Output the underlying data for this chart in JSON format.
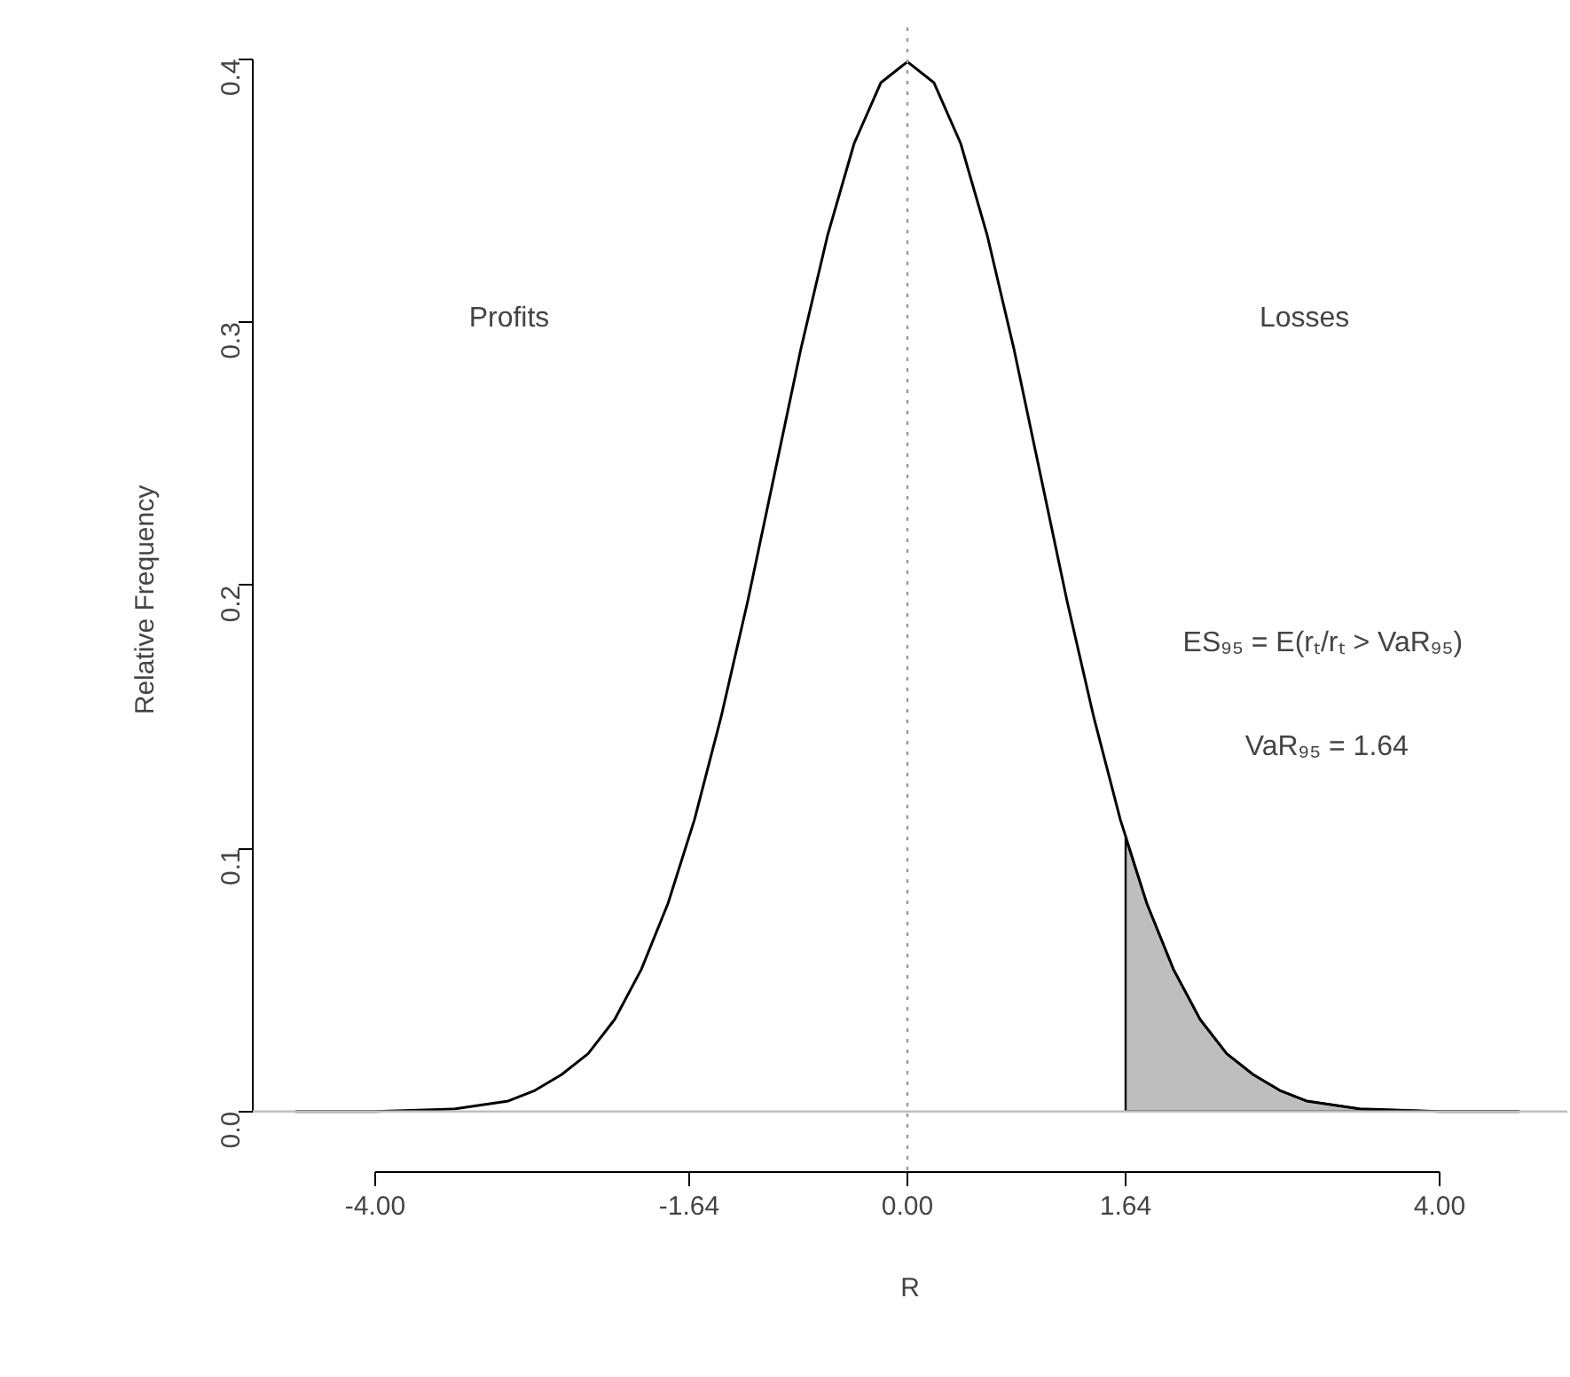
{
  "chart_data": {
    "type": "line",
    "xlabel": "R",
    "ylabel": "Relative Frequency",
    "xlim": [
      -4.92,
      4.96
    ],
    "ylim": [
      -0.023,
      0.412
    ],
    "xticks": [
      {
        "value": -4,
        "label": "-4.00"
      },
      {
        "value": -1.64,
        "label": "-1.64"
      },
      {
        "value": 0,
        "label": "0.00"
      },
      1.64,
      {
        "value": 4,
        "label": "4.00"
      }
    ],
    "yticks": [
      {
        "value": 0,
        "label": "0.0"
      },
      0.1,
      0.2,
      0.3,
      0.4
    ],
    "grid": false,
    "line_style": "solid",
    "marker": "none",
    "series": [
      {
        "color": "#000000",
        "x": [
          -4.6,
          -4.0,
          -3.4,
          -3.0,
          -2.8,
          -2.6,
          -2.4,
          -2.2,
          -2.0,
          -1.8,
          -1.6,
          -1.4,
          -1.2,
          -1.0,
          -0.8,
          -0.6,
          -0.4,
          -0.2,
          0,
          0.2,
          0.4,
          0.6,
          0.8,
          1.0,
          1.2,
          1.4,
          1.6,
          1.8,
          2.0,
          2.2,
          2.4,
          2.6,
          2.8,
          3.0,
          3.4,
          4.0,
          4.6
        ],
        "values": [
          0.0,
          0.0,
          0.001,
          0.004,
          0.008,
          0.014,
          0.022,
          0.035,
          0.054,
          0.079,
          0.111,
          0.15,
          0.194,
          0.242,
          0.29,
          0.333,
          0.368,
          0.391,
          0.399,
          0.391,
          0.368,
          0.333,
          0.29,
          0.242,
          0.194,
          0.15,
          0.111,
          0.079,
          0.054,
          0.035,
          0.022,
          0.014,
          0.008,
          0.004,
          0.001,
          0.0,
          0.0
        ]
      },
      {
        "type": "area",
        "color": "#bebebe",
        "x": [
          1.64,
          1.8,
          2.0,
          2.2,
          2.4,
          2.6,
          2.8,
          3.0,
          3.4,
          4.0,
          4.6
        ],
        "values": [
          0.104,
          0.079,
          0.054,
          0.035,
          0.022,
          0.014,
          0.008,
          0.004,
          0.001,
          0.0,
          0.0
        ]
      }
    ],
    "ref_lines": [
      {
        "axis": "x",
        "value": 0,
        "color": "#999999",
        "line_style": "dotted"
      },
      {
        "axis": "y",
        "value": 0,
        "color": "#bebebe",
        "line_style": "solid"
      }
    ],
    "annotations": [
      "Profits",
      "Losses",
      "ES₉₅ = E(rₜ/rₜ > VaR₉₅)",
      "VaR₉₅ = 1.64"
    ]
  }
}
